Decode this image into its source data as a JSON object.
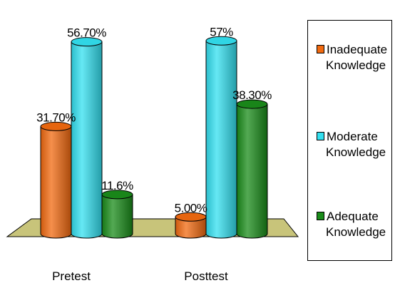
{
  "chart_data": {
    "type": "bar",
    "categories": [
      "Pretest",
      "Posttest"
    ],
    "series": [
      {
        "name": "Inadequate Knowledge",
        "values": [
          31.7,
          5.0
        ],
        "labels": [
          "31.70%",
          "5.00%"
        ],
        "color": "#F26A10"
      },
      {
        "name": "Moderate Knowledge",
        "values": [
          56.7,
          57.0
        ],
        "labels": [
          "56.70%",
          "57%"
        ],
        "color": "#33E0F0"
      },
      {
        "name": "Adequate Knowledge",
        "values": [
          11.6,
          38.3
        ],
        "labels": [
          "11.6%",
          "38.30%"
        ],
        "color": "#1A8C1A"
      }
    ],
    "floor_color": "#C8C47A",
    "ylim": [
      0,
      60
    ],
    "legend_position": "right",
    "grid": false
  },
  "legend": [
    {
      "line1": "Inadequate",
      "line2": "Knowledge"
    },
    {
      "line1": "Moderate",
      "line2": "Knowledge"
    },
    {
      "line1": "Adequate",
      "line2": "Knowledge"
    }
  ]
}
